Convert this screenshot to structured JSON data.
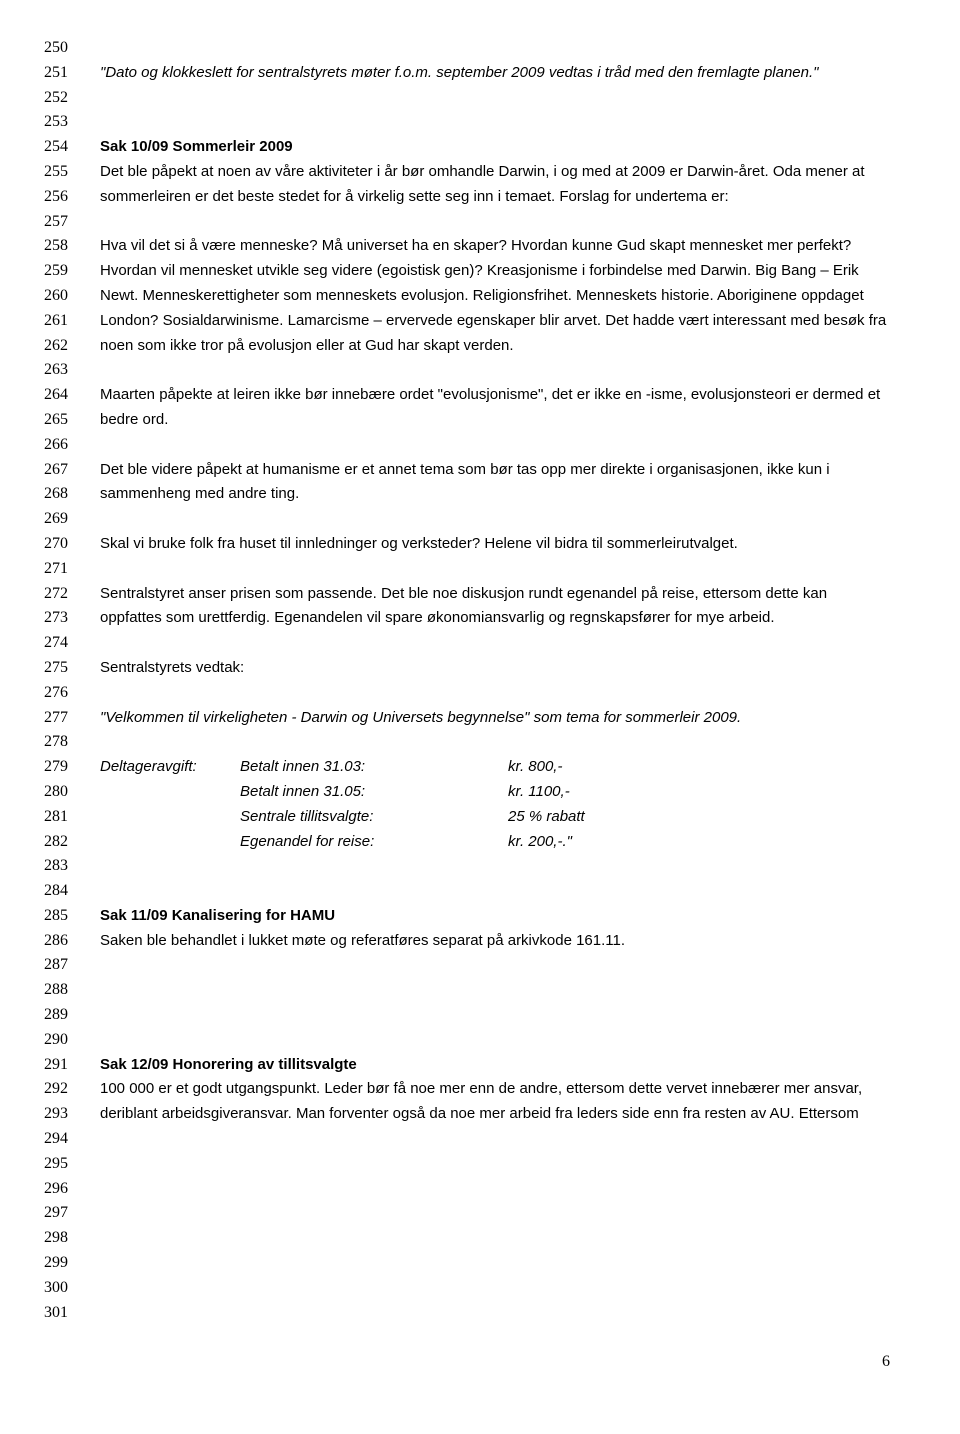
{
  "lineStart": 250,
  "lineEnd": 301,
  "pageNumber": "6",
  "p1": "\"Dato og klokkeslett for sentralstyrets møter f.o.m. september 2009 vedtas i tråd med den fremlagte planen.\"",
  "h1": "Sak 10/09 Sommerleir 2009",
  "p2": "Det ble påpekt at noen av våre aktiviteter i år bør omhandle Darwin, i og med at 2009 er Darwin-året. Oda mener at sommerleiren er det beste stedet for å virkelig sette seg inn i temaet. Forslag for undertema er:",
  "p3": "Hva vil det si å være menneske? Må universet ha en skaper? Hvordan kunne Gud skapt mennesket mer perfekt? Hvordan vil mennesket utvikle seg videre (egoistisk gen)? Kreasjonisme i forbindelse med Darwin. Big Bang – Erik Newt. Menneskerettigheter som menneskets evolusjon. Religionsfrihet. Menneskets historie. Aboriginene oppdaget London?  Sosialdarwinisme. Lamarcisme – ervervede egenskaper blir arvet. Det hadde vært interessant med besøk fra noen som ikke tror på evolusjon eller at Gud har skapt verden.",
  "p4": "Maarten påpekte at leiren ikke bør innebære ordet \"evolusjonisme\", det er ikke en -isme, evolusjonsteori er dermed et bedre ord.",
  "p5": "Det ble videre påpekt at humanisme er et annet tema som bør tas opp mer direkte i organisasjonen, ikke kun i sammenheng med andre ting.",
  "p6": "Skal vi bruke folk fra huset til innledninger og verksteder? Helene vil bidra til sommerleirutvalget.",
  "p7": "Sentralstyret anser prisen som passende. Det ble noe diskusjon rundt egenandel på reise, ettersom dette kan oppfattes som urettferdig. Egenandelen vil spare økonomiansvarlig og regnskapsfører for mye arbeid.",
  "p8": "Sentralstyrets vedtak:",
  "p9": "\"Velkommen til virkeligheten - Darwin og Universets begynnelse\" som tema for sommerleir 2009.",
  "fees": {
    "label": "Deltageravgift:",
    "rows": [
      {
        "desc": "Betalt innen 31.03:",
        "amt": "kr.   800,-"
      },
      {
        "desc": "Betalt innen 31.05:",
        "amt": "kr. 1100,-"
      },
      {
        "desc": "Sentrale tillitsvalgte:",
        "amt": "25 % rabatt"
      },
      {
        "desc": "Egenandel for reise:",
        "amt": "kr. 200,-.\""
      }
    ]
  },
  "h2": "Sak 11/09 Kanalisering for HAMU",
  "p10": "Saken ble behandlet i lukket møte og referatføres separat på arkivkode 161.11.",
  "h3": "Sak 12/09 Honorering av tillitsvalgte",
  "p11": "100 000 er et godt utgangspunkt. Leder bør få noe mer enn de andre, ettersom dette vervet innebærer mer ansvar, deriblant arbeidsgiveransvar. Man forventer også da noe mer arbeid fra leders side enn fra resten av AU. Ettersom"
}
